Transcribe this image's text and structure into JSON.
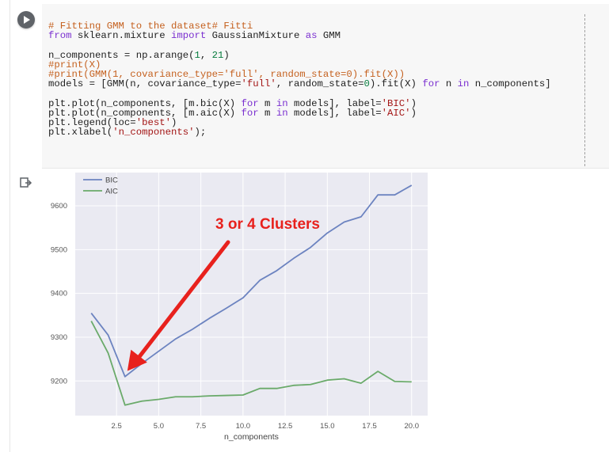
{
  "code_cell": {
    "lines": [
      [
        {
          "t": "# Fitting GMM to the dataset# Fitti",
          "c": "cm"
        }
      ],
      [
        {
          "t": "from",
          "c": "kw"
        },
        {
          "t": " sklearn.mixture ",
          "c": "fn"
        },
        {
          "t": "import",
          "c": "kw"
        },
        {
          "t": " GaussianMixture ",
          "c": "fn"
        },
        {
          "t": "as",
          "c": "kw"
        },
        {
          "t": " GMM",
          "c": "fn"
        }
      ],
      [
        {
          "t": "",
          "c": "fn"
        }
      ],
      [
        {
          "t": "n_components = np.arange(",
          "c": "fn"
        },
        {
          "t": "1",
          "c": "nm"
        },
        {
          "t": ", ",
          "c": "fn"
        },
        {
          "t": "21",
          "c": "nm"
        },
        {
          "t": ")",
          "c": "fn"
        }
      ],
      [
        {
          "t": "#print(X)",
          "c": "cm"
        }
      ],
      [
        {
          "t": "#print(GMM(1, covariance_type='full', random_state=0).fit(X))",
          "c": "cm"
        }
      ],
      [
        {
          "t": "models = [GMM(n, covariance_type=",
          "c": "fn"
        },
        {
          "t": "'full'",
          "c": "st"
        },
        {
          "t": ", random_state=",
          "c": "fn"
        },
        {
          "t": "0",
          "c": "nm"
        },
        {
          "t": ").fit(X) ",
          "c": "fn"
        },
        {
          "t": "for",
          "c": "kw"
        },
        {
          "t": " n ",
          "c": "fn"
        },
        {
          "t": "in",
          "c": "kw"
        },
        {
          "t": " n_components]",
          "c": "fn"
        }
      ],
      [
        {
          "t": "",
          "c": "fn"
        }
      ],
      [
        {
          "t": "plt.plot(n_components, [m.bic(X) ",
          "c": "fn"
        },
        {
          "t": "for",
          "c": "kw"
        },
        {
          "t": " m ",
          "c": "fn"
        },
        {
          "t": "in",
          "c": "kw"
        },
        {
          "t": " models], label=",
          "c": "fn"
        },
        {
          "t": "'BIC'",
          "c": "st"
        },
        {
          "t": ")",
          "c": "fn"
        }
      ],
      [
        {
          "t": "plt.plot(n_components, [m.aic(X) ",
          "c": "fn"
        },
        {
          "t": "for",
          "c": "kw"
        },
        {
          "t": " m ",
          "c": "fn"
        },
        {
          "t": "in",
          "c": "kw"
        },
        {
          "t": " models], label=",
          "c": "fn"
        },
        {
          "t": "'AIC'",
          "c": "st"
        },
        {
          "t": ")",
          "c": "fn"
        }
      ],
      [
        {
          "t": "plt.legend(loc=",
          "c": "fn"
        },
        {
          "t": "'best'",
          "c": "st"
        },
        {
          "t": ")",
          "c": "fn"
        }
      ],
      [
        {
          "t": "plt.xlabel(",
          "c": "fn"
        },
        {
          "t": "'n_components'",
          "c": "st"
        },
        {
          "t": ");",
          "c": "fn"
        }
      ]
    ]
  },
  "colors": {
    "bic": "#6c83c0",
    "aic": "#6aaa6a",
    "plot_bg": "#eaeaf2",
    "grid": "#ffffff",
    "annotation": "#e8211d"
  },
  "chart_data": {
    "type": "line",
    "x": [
      1,
      2,
      3,
      4,
      5,
      6,
      7,
      8,
      9,
      10,
      11,
      12,
      13,
      14,
      15,
      16,
      17,
      18,
      19,
      20
    ],
    "series": [
      {
        "name": "BIC",
        "values": [
          9355,
          9305,
          9210,
          9240,
          9268,
          9296,
          9318,
          9343,
          9366,
          9390,
          9430,
          9452,
          9480,
          9505,
          9538,
          9563,
          9575,
          9625,
          9625,
          9647
        ]
      },
      {
        "name": "AIC",
        "values": [
          9337,
          9264,
          9145,
          9154,
          9158,
          9164,
          9164,
          9166,
          9167,
          9168,
          9183,
          9183,
          9190,
          9192,
          9202,
          9205,
          9195,
          9222,
          9199,
          9198
        ]
      }
    ],
    "xlabel": "n_components",
    "xticks": [
      2.5,
      5.0,
      7.5,
      10.0,
      12.5,
      15.0,
      17.5,
      20.0
    ],
    "xtick_labels": [
      "2.5",
      "5.0",
      "7.5",
      "10.0",
      "12.5",
      "15.0",
      "17.5",
      "20.0"
    ],
    "yticks": [
      9200,
      9300,
      9400,
      9500,
      9600
    ],
    "ytick_labels": [
      "9200",
      "9300",
      "9400",
      "9500",
      "9600"
    ],
    "xlim": [
      0.05,
      20.95
    ],
    "ylim": [
      9121,
      9676
    ],
    "grid": true,
    "legend_position": "top-left",
    "annotation": {
      "text": "3 or 4 Clusters",
      "points_to": {
        "x": 3,
        "y": 9212
      }
    }
  }
}
